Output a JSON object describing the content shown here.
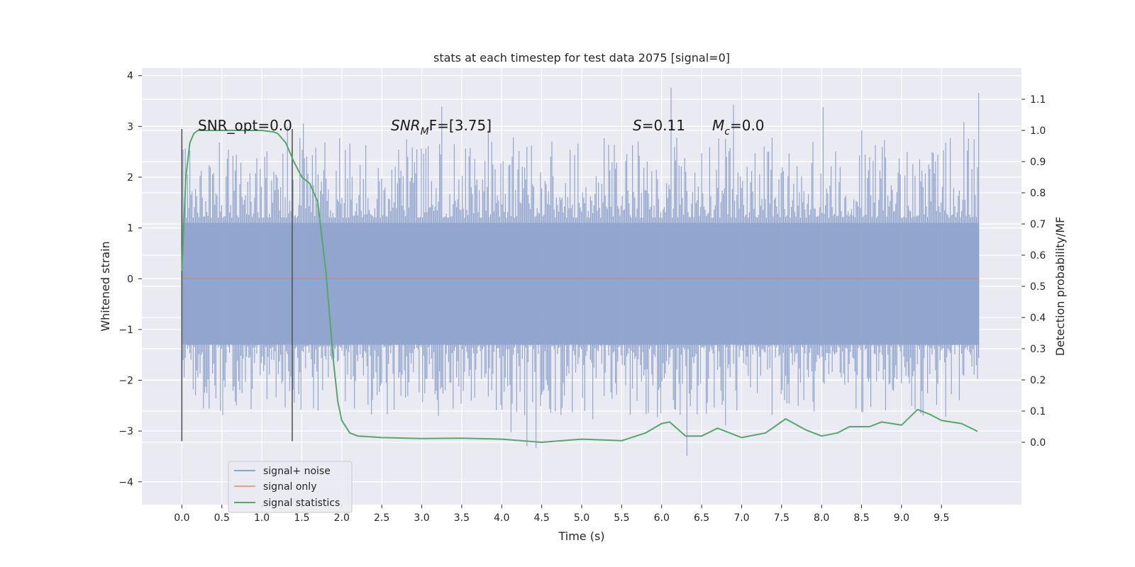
{
  "chart_data": {
    "type": "line",
    "title": "stats at each timestep for test data 2075 [signal=0]",
    "xlabel": "Time (s)",
    "ylabel": "Whitened strain",
    "y2label": "Detection probability/MF",
    "xlim": [
      -0.5,
      10.5
    ],
    "ylim": [
      -4.45,
      4.15
    ],
    "y2lim": [
      -0.2,
      1.2
    ],
    "x_ticks": [
      "0.0",
      "0.5",
      "1.0",
      "1.5",
      "2.0",
      "2.5",
      "3.0",
      "3.5",
      "4.0",
      "4.5",
      "5.0",
      "5.5",
      "6.0",
      "6.5",
      "7.0",
      "7.5",
      "8.0",
      "8.5",
      "9.0",
      "9.5"
    ],
    "y_ticks": [
      "−4",
      "−3",
      "−2",
      "−1",
      "0",
      "1",
      "2",
      "3",
      "4"
    ],
    "y2_ticks": [
      "0.0",
      "0.1",
      "0.2",
      "0.3",
      "0.4",
      "0.5",
      "0.6",
      "0.7",
      "0.8",
      "0.9",
      "1.0",
      "1.1"
    ],
    "grid": true,
    "legend_position": "lower-left",
    "annotations": {
      "snr_opt": "SNR_opt=0.0",
      "snr_mf_prefix": "SNR",
      "snr_mf_sub": "M",
      "snr_mf_rest": "F=[3.75]",
      "s_var": "S",
      "s_val": "=0.11",
      "mc_var": "M",
      "mc_sub": "c",
      "mc_val": "=0.0"
    },
    "vlines": [
      0.0,
      1.38
    ],
    "noise_band": {
      "x_start": 0.0,
      "x_end": 9.97,
      "typical_max": 1.8,
      "typical_min": -1.9,
      "peak_max": 3.8,
      "peak_min": -3.5
    },
    "series": [
      {
        "name": "signal+ noise",
        "color": "#8fa3cc",
        "description_axis": "left"
      },
      {
        "name": "signal only",
        "color": "#dd8452",
        "x": [
          0.0,
          9.97
        ],
        "y": [
          0.0,
          0.0
        ]
      },
      {
        "name": "signal statistics",
        "color": "#55a868",
        "x": [
          0.0,
          0.05,
          0.1,
          0.15,
          0.2,
          0.3,
          0.5,
          0.8,
          1.0,
          1.15,
          1.2,
          1.3,
          1.4,
          1.5,
          1.6,
          1.7,
          1.8,
          1.85,
          1.9,
          1.95,
          2.0,
          2.1,
          2.2,
          2.5,
          3.0,
          3.5,
          4.0,
          4.5,
          5.0,
          5.5,
          5.8,
          6.0,
          6.1,
          6.3,
          6.5,
          6.7,
          7.0,
          7.3,
          7.55,
          7.8,
          8.0,
          8.2,
          8.35,
          8.6,
          8.75,
          9.0,
          9.2,
          9.35,
          9.5,
          9.75,
          9.95
        ],
        "y": [
          0.55,
          0.85,
          0.96,
          0.99,
          1.0,
          1.0,
          1.0,
          1.0,
          1.0,
          0.995,
          0.99,
          0.96,
          0.9,
          0.85,
          0.83,
          0.77,
          0.55,
          0.4,
          0.25,
          0.13,
          0.07,
          0.03,
          0.02,
          0.015,
          0.012,
          0.013,
          0.01,
          0.0,
          0.01,
          0.005,
          0.03,
          0.06,
          0.065,
          0.02,
          0.02,
          0.045,
          0.015,
          0.03,
          0.075,
          0.04,
          0.02,
          0.03,
          0.05,
          0.05,
          0.065,
          0.055,
          0.105,
          0.09,
          0.07,
          0.06,
          0.035
        ]
      }
    ]
  }
}
